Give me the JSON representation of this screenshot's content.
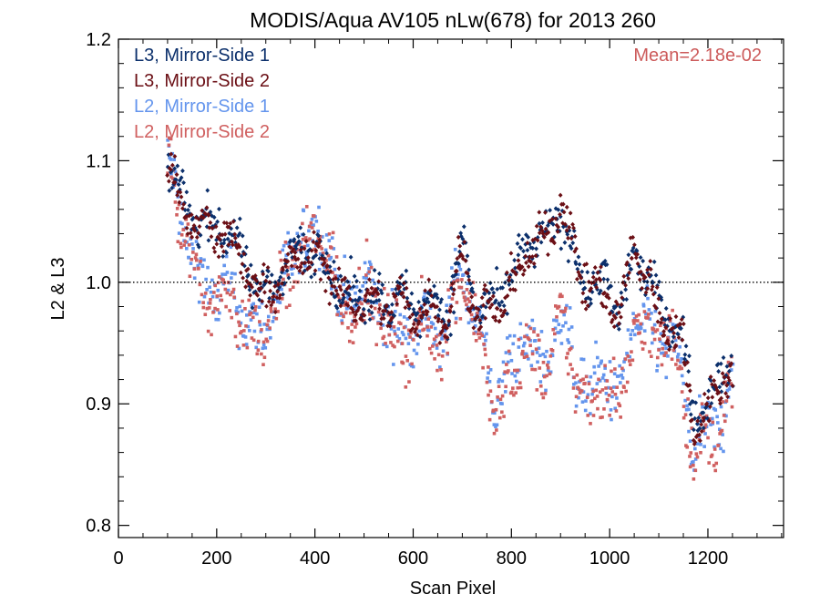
{
  "chart_data": {
    "type": "scatter",
    "title": "MODIS/Aqua AV105 nLw(678) for 2013 260",
    "xlabel": "Scan Pixel",
    "ylabel": "L2 & L3",
    "xlim": [
      0,
      1354
    ],
    "ylim": [
      0.79,
      1.2
    ],
    "x_ticks": [
      0,
      200,
      400,
      600,
      800,
      1000,
      1200
    ],
    "y_ticks": [
      0.8,
      0.9,
      1.0,
      1.1,
      1.2
    ],
    "x_tick_labels": [
      "0",
      "200",
      "400",
      "600",
      "800",
      "1000",
      "1200"
    ],
    "y_tick_labels": [
      "0.8",
      "0.9",
      "1.0",
      "1.1",
      "1.2"
    ],
    "reference_line": {
      "y": 1.0,
      "style": "dotted"
    },
    "annotation": {
      "text": "Mean=2.18e-02",
      "color": "#cc5a5a"
    },
    "legend_position": "top-left",
    "x_range": [
      100,
      1250
    ],
    "series": [
      {
        "name": "L3, Mirror-Side 1",
        "color": "#0b2f6b",
        "marker": "diamond",
        "profile": [
          [
            100,
            1.1
          ],
          [
            130,
            1.065
          ],
          [
            170,
            1.05
          ],
          [
            200,
            1.045
          ],
          [
            230,
            1.04
          ],
          [
            260,
            1.015
          ],
          [
            290,
            0.99
          ],
          [
            320,
            1.005
          ],
          [
            350,
            1.015
          ],
          [
            370,
            1.03
          ],
          [
            400,
            1.025
          ],
          [
            430,
            1.015
          ],
          [
            460,
            0.985
          ],
          [
            500,
            0.99
          ],
          [
            540,
            0.985
          ],
          [
            570,
            0.99
          ],
          [
            600,
            0.98
          ],
          [
            640,
            0.985
          ],
          [
            670,
            0.975
          ],
          [
            700,
            1.03
          ],
          [
            730,
            0.98
          ],
          [
            760,
            0.98
          ],
          [
            800,
            1.0
          ],
          [
            830,
            1.03
          ],
          [
            860,
            1.035
          ],
          [
            880,
            1.04
          ],
          [
            900,
            1.06
          ],
          [
            920,
            1.03
          ],
          [
            950,
            1.0
          ],
          [
            990,
            1.0
          ],
          [
            1020,
            0.975
          ],
          [
            1050,
            1.02
          ],
          [
            1080,
            1.01
          ],
          [
            1100,
            0.975
          ],
          [
            1130,
            0.97
          ],
          [
            1150,
            0.95
          ],
          [
            1170,
            0.89
          ],
          [
            1200,
            0.9
          ],
          [
            1230,
            0.925
          ],
          [
            1250,
            0.935
          ]
        ]
      },
      {
        "name": "L3, Mirror-Side 2",
        "color": "#6b0f15",
        "marker": "diamond",
        "profile": [
          [
            100,
            1.1
          ],
          [
            130,
            1.06
          ],
          [
            170,
            1.045
          ],
          [
            200,
            1.04
          ],
          [
            230,
            1.035
          ],
          [
            260,
            1.01
          ],
          [
            290,
            0.99
          ],
          [
            320,
            1.0
          ],
          [
            350,
            1.01
          ],
          [
            370,
            1.025
          ],
          [
            400,
            1.02
          ],
          [
            430,
            1.01
          ],
          [
            460,
            0.98
          ],
          [
            500,
            0.985
          ],
          [
            540,
            0.98
          ],
          [
            570,
            0.985
          ],
          [
            600,
            0.975
          ],
          [
            640,
            0.98
          ],
          [
            670,
            0.97
          ],
          [
            700,
            1.025
          ],
          [
            730,
            0.975
          ],
          [
            760,
            0.975
          ],
          [
            800,
            0.995
          ],
          [
            830,
            1.025
          ],
          [
            860,
            1.03
          ],
          [
            880,
            1.045
          ],
          [
            900,
            1.07
          ],
          [
            920,
            1.035
          ],
          [
            950,
            1.0
          ],
          [
            990,
            0.99
          ],
          [
            1020,
            0.97
          ],
          [
            1050,
            1.03
          ],
          [
            1080,
            1.0
          ],
          [
            1100,
            0.97
          ],
          [
            1130,
            0.965
          ],
          [
            1150,
            0.945
          ],
          [
            1170,
            0.885
          ],
          [
            1200,
            0.895
          ],
          [
            1230,
            0.92
          ],
          [
            1250,
            0.93
          ]
        ]
      },
      {
        "name": "L2, Mirror-Side 1",
        "color": "#6495ed",
        "marker": "square",
        "profile": [
          [
            100,
            1.1
          ],
          [
            130,
            1.05
          ],
          [
            160,
            1.01
          ],
          [
            190,
            0.99
          ],
          [
            220,
            0.995
          ],
          [
            250,
            0.98
          ],
          [
            280,
            0.955
          ],
          [
            300,
            0.965
          ],
          [
            340,
            1.005
          ],
          [
            370,
            1.035
          ],
          [
            400,
            1.04
          ],
          [
            430,
            1.035
          ],
          [
            450,
            0.98
          ],
          [
            480,
            0.99
          ],
          [
            510,
            0.995
          ],
          [
            540,
            0.975
          ],
          [
            570,
            0.955
          ],
          [
            600,
            0.965
          ],
          [
            640,
            0.965
          ],
          [
            660,
            0.95
          ],
          [
            700,
            1.015
          ],
          [
            740,
            0.95
          ],
          [
            770,
            0.9
          ],
          [
            800,
            0.935
          ],
          [
            830,
            0.955
          ],
          [
            860,
            0.93
          ],
          [
            880,
            0.945
          ],
          [
            900,
            0.975
          ],
          [
            930,
            0.93
          ],
          [
            960,
            0.905
          ],
          [
            990,
            0.93
          ],
          [
            1020,
            0.9
          ],
          [
            1050,
            0.975
          ],
          [
            1080,
            0.955
          ],
          [
            1110,
            0.95
          ],
          [
            1140,
            0.94
          ],
          [
            1170,
            0.865
          ],
          [
            1200,
            0.875
          ],
          [
            1230,
            0.89
          ],
          [
            1250,
            0.925
          ]
        ]
      },
      {
        "name": "L2, Mirror-Side 2",
        "color": "#d06060",
        "marker": "square",
        "profile": [
          [
            100,
            1.1
          ],
          [
            130,
            1.045
          ],
          [
            160,
            1.005
          ],
          [
            190,
            0.985
          ],
          [
            220,
            0.99
          ],
          [
            250,
            0.975
          ],
          [
            280,
            0.95
          ],
          [
            300,
            0.96
          ],
          [
            340,
            1.0
          ],
          [
            370,
            1.03
          ],
          [
            400,
            1.035
          ],
          [
            430,
            1.03
          ],
          [
            450,
            0.975
          ],
          [
            480,
            0.985
          ],
          [
            510,
            0.99
          ],
          [
            540,
            0.97
          ],
          [
            570,
            0.95
          ],
          [
            600,
            0.96
          ],
          [
            640,
            0.96
          ],
          [
            660,
            0.945
          ],
          [
            700,
            1.01
          ],
          [
            740,
            0.945
          ],
          [
            770,
            0.885
          ],
          [
            800,
            0.925
          ],
          [
            830,
            0.945
          ],
          [
            860,
            0.925
          ],
          [
            880,
            0.94
          ],
          [
            900,
            0.97
          ],
          [
            930,
            0.925
          ],
          [
            960,
            0.895
          ],
          [
            990,
            0.925
          ],
          [
            1020,
            0.895
          ],
          [
            1050,
            0.965
          ],
          [
            1080,
            0.955
          ],
          [
            1110,
            0.955
          ],
          [
            1140,
            0.94
          ],
          [
            1170,
            0.86
          ],
          [
            1200,
            0.87
          ],
          [
            1230,
            0.885
          ],
          [
            1250,
            0.92
          ]
        ]
      }
    ]
  }
}
